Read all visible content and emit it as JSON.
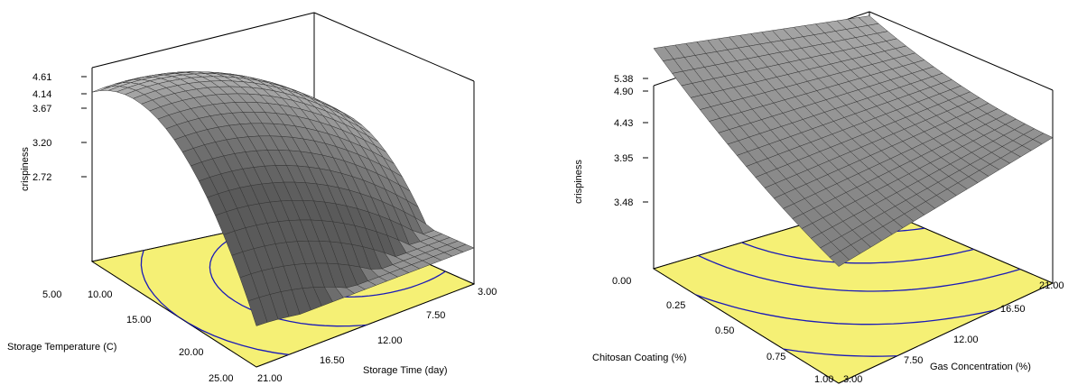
{
  "chart_data": [
    {
      "type": "surface3d",
      "zlabel": "crispiness",
      "xlabel": "Storage Temperature (C)",
      "ylabel": "Storage Time (day)",
      "x_ticks": [
        "5.00",
        "10.00",
        "15.00",
        "20.00",
        "25.00"
      ],
      "y_ticks": [
        "3.00",
        "7.50",
        "12.00",
        "16.50",
        "21.00"
      ],
      "z_ticks": [
        "2.72",
        "3.20",
        "3.67",
        "4.14",
        "4.61"
      ],
      "xlim": [
        5,
        25
      ],
      "ylim": [
        3,
        21
      ],
      "zlim": [
        2.25,
        4.61
      ],
      "corner_values": {
        "x_min_y_min": 3.67,
        "x_max_y_min": 4.05,
        "x_max_y_max": 2.3,
        "x_min_y_max": 3.35
      },
      "peak": {
        "x": 13,
        "y": 7,
        "z": 4.61
      },
      "floor_color": "#f5f075",
      "contour_color": "#1a1ab8",
      "surface_color": "#c4c4c4"
    },
    {
      "type": "surface3d",
      "zlabel": "crispiness",
      "xlabel": "Chitosan Coating (%)",
      "ylabel": "Gas Concentration (%)",
      "x_ticks": [
        "0.00",
        "0.25",
        "0.50",
        "0.75",
        "1.00"
      ],
      "y_ticks": [
        "3.00",
        "7.50",
        "12.00",
        "16.50",
        "21.00"
      ],
      "z_ticks": [
        "3.48",
        "3.95",
        "4.43",
        "4.90",
        "5.38"
      ],
      "xlim": [
        0,
        1
      ],
      "ylim": [
        3,
        21
      ],
      "zlim": [
        3.0,
        5.38
      ],
      "corner_values": {
        "x_min_y_min": 5.38,
        "x_max_y_min": 3.2,
        "x_max_y_max": 4.0,
        "x_min_y_max": 4.43
      },
      "floor_color": "#f5f075",
      "contour_color": "#1a1ab8",
      "surface_color": "#c4c4c4"
    }
  ]
}
